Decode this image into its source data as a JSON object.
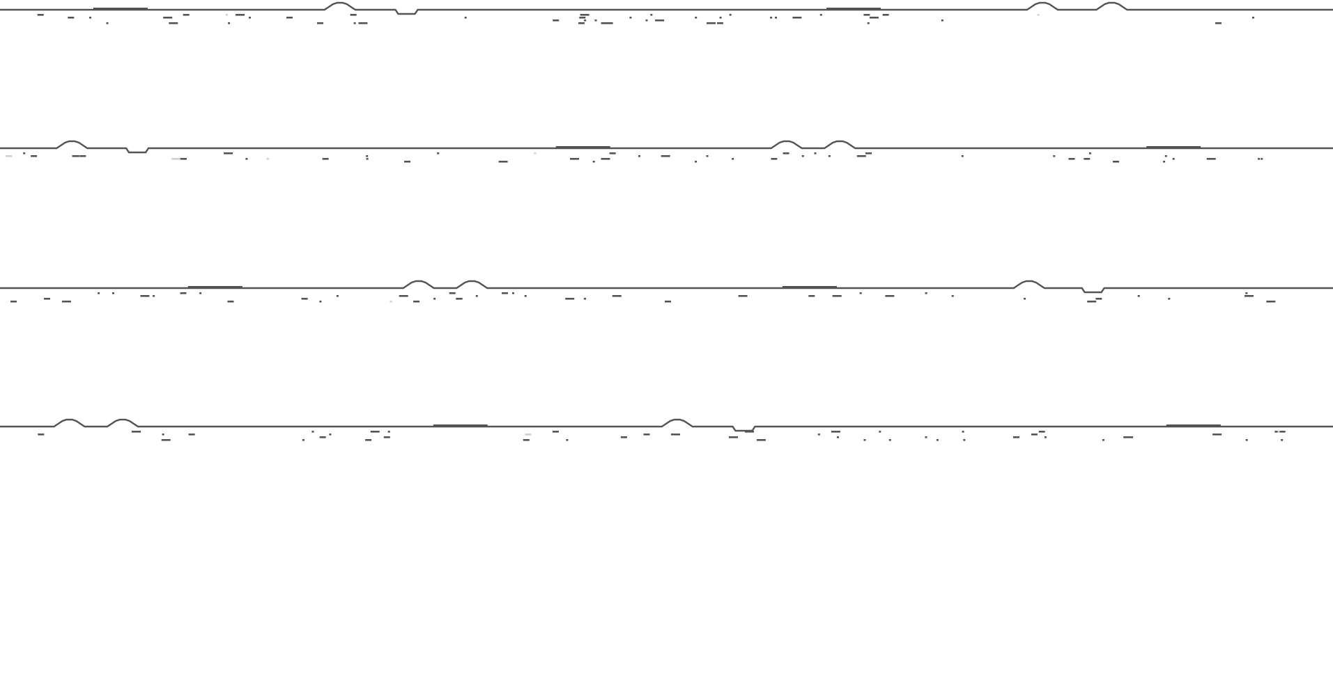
{
  "game": {
    "screen": "horizon-strips",
    "strip_count": 4,
    "colors": {
      "background": "#ffffff",
      "horizon": "#535353",
      "pebble": "#535353",
      "faded_pebble": "#cfcfcf"
    },
    "features": [
      "bump",
      "dip",
      "flat-ridge",
      "pebbles"
    ],
    "rows": [
      {
        "label": "strip-1",
        "bumps": [
          0.255,
          0.782,
          0.834
        ],
        "dips": [
          0.305
        ],
        "flats": [
          0.07,
          0.62
        ]
      },
      {
        "label": "strip-2",
        "bumps": [
          0.054,
          0.59,
          0.63
        ],
        "dips": [
          0.103
        ],
        "flats": [
          0.417,
          0.86
        ]
      },
      {
        "label": "strip-3",
        "bumps": [
          0.314,
          0.354,
          0.772
        ],
        "dips": [
          0.82
        ],
        "flats": [
          0.141,
          0.587
        ]
      },
      {
        "label": "strip-4",
        "bumps": [
          0.052,
          0.092,
          0.508
        ],
        "dips": [
          0.558
        ],
        "flats": [
          0.325,
          0.875
        ]
      }
    ]
  }
}
